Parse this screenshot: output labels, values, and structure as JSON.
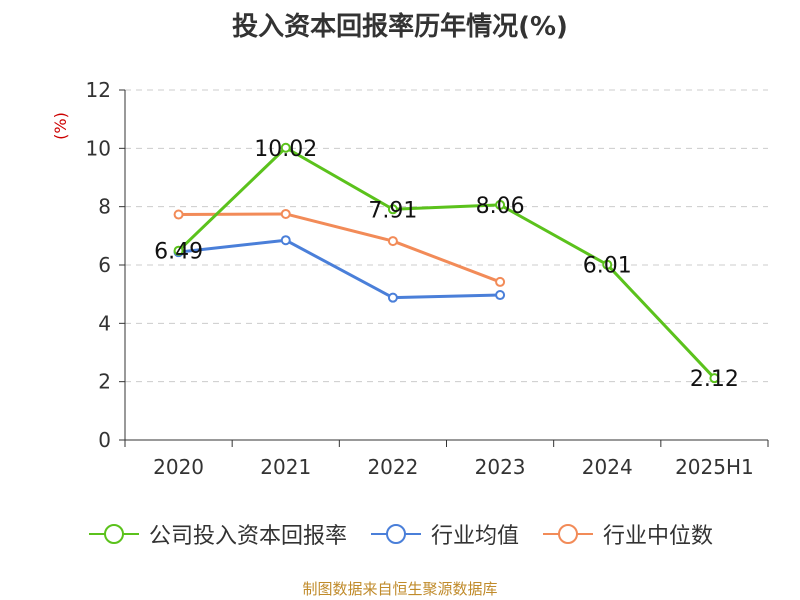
{
  "chart_data": {
    "type": "line",
    "title": "投入资本回报率历年情况(%)",
    "ylabel": "(%)",
    "categories": [
      "2020",
      "2021",
      "2022",
      "2023",
      "2024",
      "2025H1"
    ],
    "ylim": [
      0,
      12
    ],
    "yticks": [
      0,
      2,
      4,
      6,
      8,
      10,
      12
    ],
    "grid": "horizontal-dashed",
    "legend_position": "bottom",
    "series": [
      {
        "name": "公司投入资本回报率",
        "color": "#5bc21c",
        "values": [
          6.49,
          10.02,
          7.91,
          8.06,
          6.01,
          2.12
        ],
        "labels": [
          "6.49",
          "10.02",
          "7.91",
          "8.06",
          "6.01",
          "2.12"
        ]
      },
      {
        "name": "行业均值",
        "color": "#4a7fd9",
        "values": [
          6.44,
          6.85,
          4.88,
          4.97,
          null,
          null
        ]
      },
      {
        "name": "行业中位数",
        "color": "#f28b58",
        "values": [
          7.73,
          7.75,
          6.82,
          5.42,
          null,
          null
        ]
      }
    ]
  },
  "footer": "制图数据来自恒生聚源数据库",
  "colors": {
    "axis": "#333333",
    "grid": "#cccccc",
    "ylabel": "#cc0000"
  }
}
